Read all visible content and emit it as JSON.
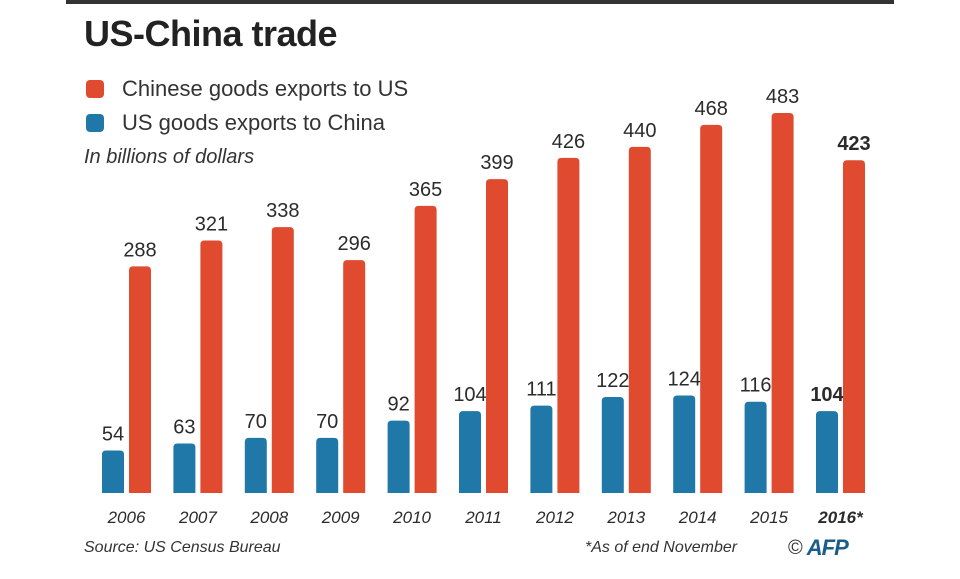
{
  "title": "US-China trade",
  "subtitle": "In billions of dollars",
  "source": "Source: US Census Bureau",
  "note": "*As of end November",
  "credit": {
    "copyright_symbol": "©",
    "agency": "AFP"
  },
  "colors": {
    "chinese_exports": "#e04a2f",
    "us_exports": "#1f78a8",
    "text": "#2b2b2b"
  },
  "chart_data": {
    "type": "bar",
    "title": "US-China trade",
    "ylabel": "In billions of dollars",
    "xlabel": "",
    "ylim": [
      0,
      500
    ],
    "categories": [
      "2006",
      "2007",
      "2008",
      "2009",
      "2010",
      "2011",
      "2012",
      "2013",
      "2014",
      "2015",
      "2016*"
    ],
    "series": [
      {
        "name": "US goods exports to China",
        "color": "#1f78a8",
        "values": [
          54,
          63,
          70,
          70,
          92,
          104,
          111,
          122,
          124,
          116,
          104
        ]
      },
      {
        "name": "Chinese goods exports to US",
        "color": "#e04a2f",
        "values": [
          288,
          321,
          338,
          296,
          365,
          399,
          426,
          440,
          468,
          483,
          423
        ]
      }
    ],
    "emphasized_category": "2016*",
    "legend": [
      {
        "label": "Chinese goods exports to US",
        "color": "#e04a2f"
      },
      {
        "label": "US goods exports to China",
        "color": "#1f78a8"
      }
    ]
  }
}
